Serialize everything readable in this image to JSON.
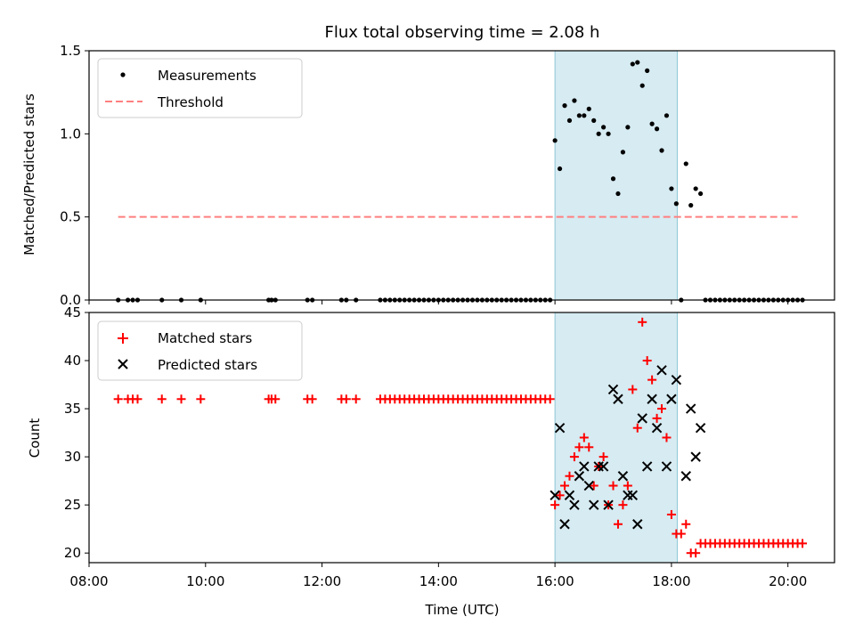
{
  "chart_data": [
    {
      "type": "scatter",
      "title": "Flux total observing time = 2.08 h",
      "ylabel": "Matched/Predicted stars",
      "xlabel": "",
      "xlim": [
        "08:00",
        "20:48"
      ],
      "ylim": [
        0,
        1.5
      ],
      "yticks": [
        "0.0",
        "0.5",
        "1.0",
        "1.5"
      ],
      "highlight_span": [
        "16:00",
        "18:06"
      ],
      "legend": {
        "position": "top-left",
        "entries": [
          "Measurements",
          "Threshold"
        ]
      },
      "threshold": {
        "name": "Threshold",
        "y": 0.5,
        "x_start": "08:30",
        "x_end": "20:10",
        "color": "#ff7f7f"
      },
      "series": [
        {
          "name": "Measurements",
          "color": "#000000",
          "points": [
            [
              "08:30",
              0
            ],
            [
              "08:40",
              0
            ],
            [
              "08:45",
              0
            ],
            [
              "08:50",
              0
            ],
            [
              "09:15",
              0
            ],
            [
              "09:35",
              0
            ],
            [
              "09:55",
              0
            ],
            [
              "11:05",
              0
            ],
            [
              "11:08",
              0
            ],
            [
              "11:12",
              0
            ],
            [
              "11:45",
              0
            ],
            [
              "11:50",
              0
            ],
            [
              "12:20",
              0
            ],
            [
              "12:25",
              0
            ],
            [
              "12:35",
              0
            ],
            [
              "13:00",
              0
            ],
            [
              "13:05",
              0
            ],
            [
              "13:10",
              0
            ],
            [
              "13:15",
              0
            ],
            [
              "13:20",
              0
            ],
            [
              "13:25",
              0
            ],
            [
              "13:30",
              0
            ],
            [
              "13:35",
              0
            ],
            [
              "13:40",
              0
            ],
            [
              "13:45",
              0
            ],
            [
              "13:50",
              0
            ],
            [
              "13:55",
              0
            ],
            [
              "14:00",
              0
            ],
            [
              "14:05",
              0
            ],
            [
              "14:10",
              0
            ],
            [
              "14:15",
              0
            ],
            [
              "14:20",
              0
            ],
            [
              "14:25",
              0
            ],
            [
              "14:30",
              0
            ],
            [
              "14:35",
              0
            ],
            [
              "14:40",
              0
            ],
            [
              "14:45",
              0
            ],
            [
              "14:50",
              0
            ],
            [
              "14:55",
              0
            ],
            [
              "15:00",
              0
            ],
            [
              "15:05",
              0
            ],
            [
              "15:10",
              0
            ],
            [
              "15:15",
              0
            ],
            [
              "15:20",
              0
            ],
            [
              "15:25",
              0
            ],
            [
              "15:30",
              0
            ],
            [
              "15:35",
              0
            ],
            [
              "15:40",
              0
            ],
            [
              "15:45",
              0
            ],
            [
              "15:50",
              0
            ],
            [
              "15:55",
              0
            ],
            [
              "16:00",
              0.96
            ],
            [
              "16:05",
              0.79
            ],
            [
              "16:10",
              1.17
            ],
            [
              "16:15",
              1.08
            ],
            [
              "16:20",
              1.2
            ],
            [
              "16:25",
              1.11
            ],
            [
              "16:30",
              1.11
            ],
            [
              "16:35",
              1.15
            ],
            [
              "16:40",
              1.08
            ],
            [
              "16:45",
              1.0
            ],
            [
              "16:50",
              1.04
            ],
            [
              "16:55",
              1.0
            ],
            [
              "17:00",
              0.73
            ],
            [
              "17:05",
              0.64
            ],
            [
              "17:10",
              0.89
            ],
            [
              "17:15",
              1.04
            ],
            [
              "17:20",
              1.42
            ],
            [
              "17:25",
              1.43
            ],
            [
              "17:30",
              1.29
            ],
            [
              "17:35",
              1.38
            ],
            [
              "17:40",
              1.06
            ],
            [
              "17:45",
              1.03
            ],
            [
              "17:50",
              0.9
            ],
            [
              "17:55",
              1.11
            ],
            [
              "18:00",
              0.67
            ],
            [
              "18:05",
              0.58
            ],
            [
              "18:10",
              0.0
            ],
            [
              "18:15",
              0.82
            ],
            [
              "18:20",
              0.57
            ],
            [
              "18:25",
              0.67
            ],
            [
              "18:30",
              0.64
            ],
            [
              "18:35",
              0
            ],
            [
              "18:40",
              0
            ],
            [
              "18:45",
              0
            ],
            [
              "18:50",
              0
            ],
            [
              "18:55",
              0
            ],
            [
              "19:00",
              0
            ],
            [
              "19:05",
              0
            ],
            [
              "19:10",
              0
            ],
            [
              "19:15",
              0
            ],
            [
              "19:20",
              0
            ],
            [
              "19:25",
              0
            ],
            [
              "19:30",
              0
            ],
            [
              "19:35",
              0
            ],
            [
              "19:40",
              0
            ],
            [
              "19:45",
              0
            ],
            [
              "19:50",
              0
            ],
            [
              "19:55",
              0
            ],
            [
              "20:00",
              0
            ],
            [
              "20:05",
              0
            ],
            [
              "20:10",
              0
            ],
            [
              "20:15",
              0
            ]
          ]
        }
      ]
    },
    {
      "type": "scatter",
      "title": "",
      "ylabel": "Count",
      "xlabel": "Time (UTC)",
      "xlim": [
        "08:00",
        "20:48"
      ],
      "ylim": [
        19,
        45
      ],
      "yticks": [
        "20",
        "25",
        "30",
        "35",
        "40",
        "45"
      ],
      "xticks": [
        "08:00",
        "10:00",
        "12:00",
        "14:00",
        "16:00",
        "18:00",
        "20:00"
      ],
      "highlight_span": [
        "16:00",
        "18:06"
      ],
      "legend": {
        "position": "top-left",
        "entries": [
          "Matched stars",
          "Predicted stars"
        ]
      },
      "series": [
        {
          "name": "Matched stars",
          "marker": "plus",
          "color": "#ff0000",
          "points": [
            [
              "08:30",
              36
            ],
            [
              "08:40",
              36
            ],
            [
              "08:45",
              36
            ],
            [
              "08:50",
              36
            ],
            [
              "09:15",
              36
            ],
            [
              "09:35",
              36
            ],
            [
              "09:55",
              36
            ],
            [
              "11:05",
              36
            ],
            [
              "11:08",
              36
            ],
            [
              "11:12",
              36
            ],
            [
              "11:45",
              36
            ],
            [
              "11:50",
              36
            ],
            [
              "12:20",
              36
            ],
            [
              "12:25",
              36
            ],
            [
              "12:35",
              36
            ],
            [
              "13:00",
              36
            ],
            [
              "13:05",
              36
            ],
            [
              "13:10",
              36
            ],
            [
              "13:15",
              36
            ],
            [
              "13:20",
              36
            ],
            [
              "13:25",
              36
            ],
            [
              "13:30",
              36
            ],
            [
              "13:35",
              36
            ],
            [
              "13:40",
              36
            ],
            [
              "13:45",
              36
            ],
            [
              "13:50",
              36
            ],
            [
              "13:55",
              36
            ],
            [
              "14:00",
              36
            ],
            [
              "14:05",
              36
            ],
            [
              "14:10",
              36
            ],
            [
              "14:15",
              36
            ],
            [
              "14:20",
              36
            ],
            [
              "14:25",
              36
            ],
            [
              "14:30",
              36
            ],
            [
              "14:35",
              36
            ],
            [
              "14:40",
              36
            ],
            [
              "14:45",
              36
            ],
            [
              "14:50",
              36
            ],
            [
              "14:55",
              36
            ],
            [
              "15:00",
              36
            ],
            [
              "15:05",
              36
            ],
            [
              "15:10",
              36
            ],
            [
              "15:15",
              36
            ],
            [
              "15:20",
              36
            ],
            [
              "15:25",
              36
            ],
            [
              "15:30",
              36
            ],
            [
              "15:35",
              36
            ],
            [
              "15:40",
              36
            ],
            [
              "15:45",
              36
            ],
            [
              "15:50",
              36
            ],
            [
              "15:55",
              36
            ],
            [
              "16:00",
              25
            ],
            [
              "16:05",
              26
            ],
            [
              "16:10",
              27
            ],
            [
              "16:15",
              28
            ],
            [
              "16:20",
              30
            ],
            [
              "16:25",
              31
            ],
            [
              "16:30",
              32
            ],
            [
              "16:35",
              31
            ],
            [
              "16:40",
              27
            ],
            [
              "16:45",
              29
            ],
            [
              "16:50",
              30
            ],
            [
              "16:55",
              25
            ],
            [
              "17:00",
              27
            ],
            [
              "17:05",
              23
            ],
            [
              "17:10",
              25
            ],
            [
              "17:15",
              27
            ],
            [
              "17:20",
              37
            ],
            [
              "17:25",
              33
            ],
            [
              "17:30",
              44
            ],
            [
              "17:35",
              40
            ],
            [
              "17:40",
              38
            ],
            [
              "17:45",
              34
            ],
            [
              "17:50",
              35
            ],
            [
              "17:55",
              32
            ],
            [
              "18:00",
              24
            ],
            [
              "18:05",
              22
            ],
            [
              "18:10",
              22
            ],
            [
              "18:15",
              23
            ],
            [
              "18:20",
              20
            ],
            [
              "18:25",
              20
            ],
            [
              "18:30",
              21
            ],
            [
              "18:35",
              21
            ],
            [
              "18:40",
              21
            ],
            [
              "18:45",
              21
            ],
            [
              "18:50",
              21
            ],
            [
              "18:55",
              21
            ],
            [
              "19:00",
              21
            ],
            [
              "19:05",
              21
            ],
            [
              "19:10",
              21
            ],
            [
              "19:15",
              21
            ],
            [
              "19:20",
              21
            ],
            [
              "19:25",
              21
            ],
            [
              "19:30",
              21
            ],
            [
              "19:35",
              21
            ],
            [
              "19:40",
              21
            ],
            [
              "19:45",
              21
            ],
            [
              "19:50",
              21
            ],
            [
              "19:55",
              21
            ],
            [
              "20:00",
              21
            ],
            [
              "20:05",
              21
            ],
            [
              "20:10",
              21
            ],
            [
              "20:15",
              21
            ]
          ]
        },
        {
          "name": "Predicted stars",
          "marker": "x",
          "color": "#000000",
          "points": [
            [
              "16:00",
              26
            ],
            [
              "16:05",
              33
            ],
            [
              "16:10",
              23
            ],
            [
              "16:15",
              26
            ],
            [
              "16:20",
              25
            ],
            [
              "16:25",
              28
            ],
            [
              "16:30",
              29
            ],
            [
              "16:35",
              27
            ],
            [
              "16:40",
              25
            ],
            [
              "16:45",
              29
            ],
            [
              "16:50",
              29
            ],
            [
              "16:55",
              25
            ],
            [
              "17:00",
              37
            ],
            [
              "17:05",
              36
            ],
            [
              "17:10",
              28
            ],
            [
              "17:15",
              26
            ],
            [
              "17:20",
              26
            ],
            [
              "17:25",
              23
            ],
            [
              "17:30",
              34
            ],
            [
              "17:35",
              29
            ],
            [
              "17:40",
              36
            ],
            [
              "17:45",
              33
            ],
            [
              "17:50",
              39
            ],
            [
              "17:55",
              29
            ],
            [
              "18:00",
              36
            ],
            [
              "18:05",
              38
            ],
            [
              "18:15",
              28
            ],
            [
              "18:20",
              35
            ],
            [
              "18:25",
              30
            ],
            [
              "18:30",
              33
            ]
          ]
        }
      ]
    }
  ]
}
